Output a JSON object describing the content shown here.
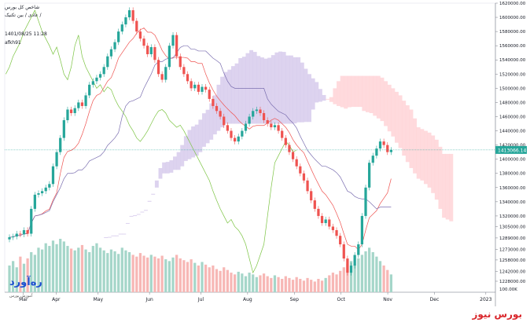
{
  "header": {
    "line1": "شاخص کل بورس",
    "line2": "عادی / بین تکنیک /",
    "timestamp": "1401/08/25 11:28",
    "account": "afkh91"
  },
  "watermark": {
    "news_text": "بورس نیوز",
    "logo_text": "ره‌آورد",
    "logo_sub": "آموزش بورس"
  },
  "colors": {
    "up": "#26a69a",
    "down": "#ef5350",
    "kumo_bull": "#d1c4e9",
    "kumo_bear": "#ffcdd2",
    "chikou": "#7cc443",
    "tenkan": "#ef5350",
    "kijun": "#7b6fb0",
    "price_tag": "#26a69a"
  },
  "chart_data": {
    "type": "candlestick",
    "indicator": "ichimoku",
    "last_price_label": "1413066.14",
    "last_price": 1413066.14,
    "y_ticks": [
      1620000.0,
      1600000.0,
      1580000.0,
      1560000.0,
      1540000.0,
      1520000.0,
      1500000.0,
      1480000.0,
      1460000.0,
      1440000.0,
      1420000.0,
      1400000.0,
      1380000.0,
      1360000.0,
      1340000.0,
      1320000.0,
      1305000.0,
      1289000.0,
      1273000.0,
      1258000.0,
      1242000.0,
      1228000.0
    ],
    "y_tick_labels": [
      "1620000.00",
      "1600000.00",
      "1580000.00",
      "1560000.00",
      "1540000.00",
      "1520000.00",
      "1500000.00",
      "1480000.00",
      "1460000.00",
      "1440000.00",
      "1420000.00",
      "1400000.00",
      "1380000.00",
      "1360000.00",
      "1340000.00",
      "1320000.00",
      "1305000.00",
      "1289000.00",
      "1273000.00",
      "1258000.00",
      "1242000.00",
      "1228000.00"
    ],
    "volume_label": "100.00K",
    "x_labels": [
      {
        "text": "Mar",
        "pos": 0.04
      },
      {
        "text": "Apr",
        "pos": 0.11
      },
      {
        "text": "May",
        "pos": 0.2
      },
      {
        "text": "Jun",
        "pos": 0.31
      },
      {
        "text": "Jul",
        "pos": 0.42
      },
      {
        "text": "Aug",
        "pos": 0.52
      },
      {
        "text": "Sep",
        "pos": 0.62
      },
      {
        "text": "Oct",
        "pos": 0.72
      },
      {
        "text": "Nov",
        "pos": 0.82
      },
      {
        "text": "Dec",
        "pos": 0.92
      },
      {
        "text": "2023",
        "pos": 1.03
      }
    ],
    "closes": [
      1290000,
      1291000,
      1295000,
      1294000,
      1300000,
      1295000,
      1330000,
      1350000,
      1352000,
      1355000,
      1360000,
      1365000,
      1390000,
      1410000,
      1430000,
      1455000,
      1470000,
      1465000,
      1472000,
      1480000,
      1475000,
      1490000,
      1505000,
      1510000,
      1515000,
      1520000,
      1530000,
      1545000,
      1555000,
      1565000,
      1580000,
      1590000,
      1600000,
      1610000,
      1595000,
      1580000,
      1570000,
      1560000,
      1548000,
      1558000,
      1540000,
      1520000,
      1512000,
      1530000,
      1560000,
      1575000,
      1545000,
      1530000,
      1520000,
      1510000,
      1500000,
      1505000,
      1495000,
      1502000,
      1498000,
      1485000,
      1475000,
      1468000,
      1460000,
      1448000,
      1440000,
      1430000,
      1425000,
      1432000,
      1440000,
      1450000,
      1460000,
      1468000,
      1470000,
      1465000,
      1455000,
      1450000,
      1445000,
      1448000,
      1440000,
      1430000,
      1420000,
      1410000,
      1400000,
      1390000,
      1380000,
      1370000,
      1355000,
      1342000,
      1330000,
      1320000,
      1310000,
      1315000,
      1305000,
      1300000,
      1292000,
      1280000,
      1260000,
      1240000,
      1250000,
      1265000,
      1280000,
      1320000,
      1360000,
      1395000,
      1405000,
      1415000,
      1425000,
      1420000,
      1410000,
      1413066
    ],
    "volumes": [
      30,
      35,
      28,
      40,
      32,
      38,
      45,
      42,
      50,
      48,
      55,
      52,
      58,
      54,
      60,
      57,
      52,
      49,
      47,
      50,
      53,
      48,
      45,
      52,
      55,
      50,
      47,
      44,
      48,
      46,
      43,
      50,
      47,
      45,
      42,
      40,
      44,
      41,
      39,
      42,
      40,
      38,
      41,
      37,
      35,
      39,
      42,
      38,
      36,
      34,
      37,
      33,
      30,
      34,
      31,
      28,
      30,
      26,
      24,
      28,
      25,
      22,
      20,
      23,
      21,
      18,
      22,
      20,
      17,
      19,
      21,
      18,
      16,
      19,
      17,
      15,
      18,
      16,
      14,
      17,
      15,
      13,
      16,
      14,
      12,
      15,
      13,
      16,
      19,
      22,
      20,
      24,
      28,
      32,
      35,
      30,
      38,
      42,
      46,
      50,
      45,
      40,
      35,
      30,
      25,
      20
    ]
  }
}
